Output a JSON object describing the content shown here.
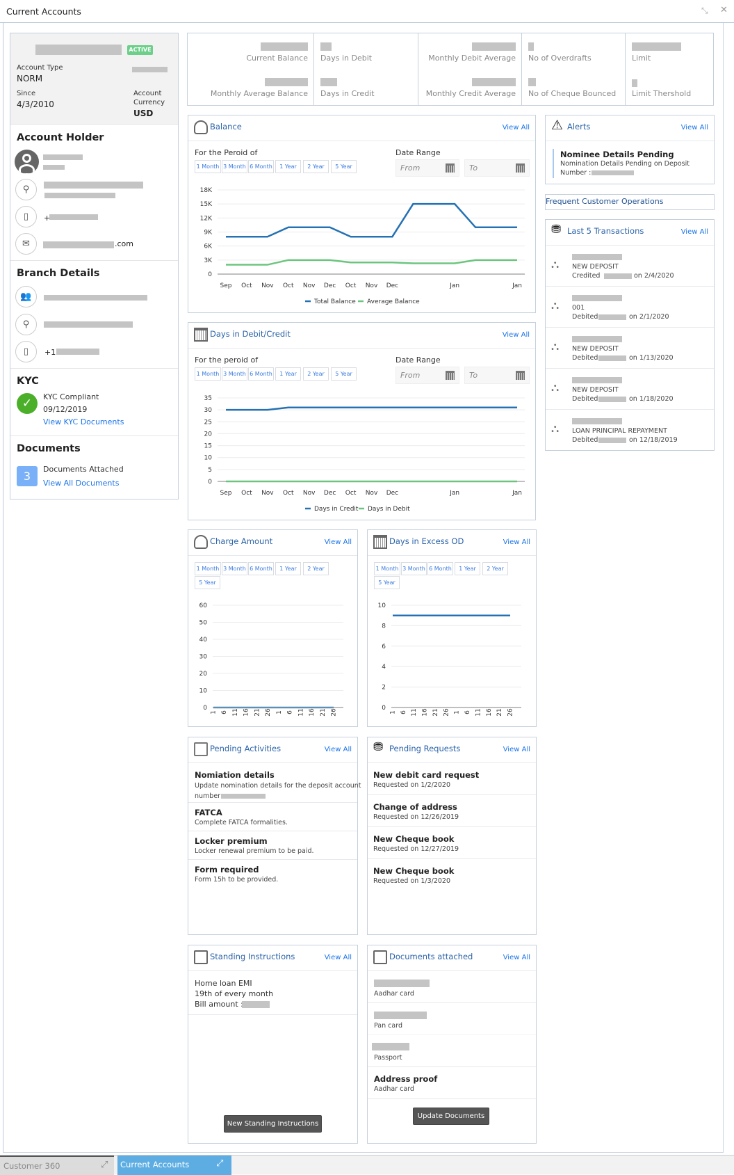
{
  "window": {
    "title": "Current Accounts",
    "minimize_icon": "collapse-icon",
    "close_icon": "close-icon"
  },
  "account": {
    "status": "ACTIVE",
    "account_type_label": "Account Type",
    "account_type": "NORM",
    "since_label": "Since",
    "since": "4/3/2010",
    "currency_label_1": "Account",
    "currency_label_2": "Currency",
    "currency": "USD"
  },
  "holder": {
    "heading": "Account Holder",
    "email_suffix": ".com",
    "phone_prefix": "+"
  },
  "branch": {
    "heading": "Branch Details",
    "phone_prefix": "+1"
  },
  "kyc": {
    "heading": "KYC",
    "status": "KYC Compliant",
    "date": "09/12/2019",
    "link": "View KYC Documents",
    "color": "#4caf2a"
  },
  "documents": {
    "heading": "Documents",
    "count": "3",
    "label": "Documents Attached",
    "link": "View All Documents"
  },
  "summary": {
    "current_balance": "Current Balance",
    "monthly_average_balance": "Monthly Average Balance",
    "days_in_debit": "Days in Debit",
    "days_in_credit": "Days in Credit",
    "monthly_debit_average": "Monthly Debit Average",
    "monthly_credit_average": "Monthly Credit Average",
    "no_of_overdrafts": "No of Overdrafts",
    "no_of_cheque_bounced": "No of Cheque Bounced",
    "limit": "Limit",
    "limit_threshold": "Limit Thershold"
  },
  "common": {
    "view_all": "View All",
    "periods": [
      "1 Month",
      "3 Month",
      "6 Month",
      "1 Year",
      "2 Year",
      "5 Year"
    ],
    "date_range": "Date Range",
    "from": "From",
    "to": "To"
  },
  "balance_card": {
    "title": "Balance",
    "period_label": "For the Peroid of"
  },
  "days_card": {
    "title": "Days in Debit/Credit",
    "period_label": "For the peroid of"
  },
  "charge_card": {
    "title": "Charge Amount"
  },
  "excess_card": {
    "title": "Days in Excess OD"
  },
  "alerts": {
    "title": "Alerts",
    "items": [
      {
        "title": "Nominee Details Pending",
        "text": "Nomination Details Pending on Deposit",
        "number_label": "Number :"
      }
    ]
  },
  "frequent": {
    "title": "Frequent Customer Operations"
  },
  "transactions": {
    "title": "Last 5 Transactions",
    "items": [
      {
        "desc": "NEW DEPOSIT",
        "type": "Credited",
        "date": "on 2/4/2020"
      },
      {
        "desc": "001",
        "type": "Debited",
        "date": "on 2/1/2020"
      },
      {
        "desc": "NEW DEPOSIT",
        "type": "Debited",
        "date": "on 1/13/2020"
      },
      {
        "desc": "NEW DEPOSIT",
        "type": "Debited",
        "date": "on 1/18/2020"
      },
      {
        "desc": "LOAN PRINCIPAL REPAYMENT",
        "type": "Debited",
        "date": "on 12/18/2019"
      }
    ]
  },
  "pending_activities": {
    "title": "Pending Activities",
    "items": [
      {
        "title": "Nomiation details",
        "text": "Update nomination details for the deposit account",
        "text2": "number"
      },
      {
        "title": "FATCA",
        "text": "Complete FATCA formalities."
      },
      {
        "title": "Locker premium",
        "text": "Locker renewal premium to be paid."
      },
      {
        "title": "Form required",
        "text": "Form 15h to be provided."
      }
    ]
  },
  "pending_requests": {
    "title": "Pending Requests",
    "items": [
      {
        "title": "New debit card request",
        "text": "Requested on 1/2/2020"
      },
      {
        "title": "Change of address",
        "text": "Requested on 12/26/2019"
      },
      {
        "title": "New Cheque book",
        "text": "Requested on 12/27/2019"
      },
      {
        "title": "New Cheque book",
        "text": "Requested on 1/3/2020"
      }
    ]
  },
  "standing": {
    "title": "Standing Instructions",
    "line1": "Home loan EMI",
    "line2": "19th of every month",
    "line3": "Bill amount :",
    "button": "New Standing Instructions"
  },
  "docs_attached": {
    "title": "Documents attached",
    "items": [
      {
        "text": "Aadhar card"
      },
      {
        "text": "Pan card"
      },
      {
        "text": "Passport"
      },
      {
        "title": "Address proof",
        "text": "Aadhar card"
      }
    ],
    "button": "Update Documents"
  },
  "taskbar": {
    "tabs": [
      {
        "label": "Customer 360",
        "active": false
      },
      {
        "label": "Current Accounts",
        "active": true
      }
    ],
    "active_color": "#5dade2"
  },
  "chart_data": [
    {
      "id": "balance",
      "type": "line",
      "categories": [
        "Sep",
        "Oct",
        "Nov",
        "Oct",
        "Nov",
        "Dec",
        "Oct",
        "Nov",
        "Dec",
        "",
        "",
        "Jan",
        "",
        "",
        "Jan"
      ],
      "ylim": [
        0,
        18000
      ],
      "yticks": [
        0,
        3000,
        6000,
        9000,
        12000,
        15000,
        18000
      ],
      "ytick_labels": [
        "0",
        "3K",
        "6K",
        "9K",
        "12K",
        "15K",
        "18K"
      ],
      "legend": "bottom",
      "grid": true,
      "series": [
        {
          "name": "Total Balance",
          "color": "#2471b3",
          "values": [
            8000,
            8000,
            8000,
            10000,
            10000,
            10000,
            8000,
            8000,
            8000,
            15000,
            15000,
            15000,
            10000,
            10000,
            10000
          ]
        },
        {
          "name": "Average Balance",
          "color": "#6cc57e",
          "values": [
            2000,
            2000,
            2000,
            3000,
            3000,
            3000,
            2500,
            2500,
            2500,
            2300,
            2300,
            2300,
            3000,
            3000,
            3000
          ]
        }
      ]
    },
    {
      "id": "days",
      "type": "line",
      "categories": [
        "Sep",
        "Oct",
        "Nov",
        "Oct",
        "Nov",
        "Dec",
        "Oct",
        "Nov",
        "Dec",
        "",
        "",
        "Jan",
        "",
        "",
        "Jan"
      ],
      "ylim": [
        0,
        35
      ],
      "yticks": [
        0,
        5,
        10,
        15,
        20,
        25,
        30,
        35
      ],
      "ytick_labels": [
        "0",
        "5",
        "10",
        "15",
        "20",
        "25",
        "30",
        "35"
      ],
      "legend": "bottom",
      "grid": true,
      "series": [
        {
          "name": "Days in Credit",
          "color": "#2471b3",
          "values": [
            30,
            30,
            30,
            31,
            31,
            31,
            31,
            31,
            31,
            31,
            31,
            31,
            31,
            31,
            31
          ]
        },
        {
          "name": "Days in Debit",
          "color": "#6cc57e",
          "values": [
            0,
            0,
            0,
            0,
            0,
            0,
            0,
            0,
            0,
            0,
            0,
            0,
            0,
            0,
            0
          ]
        }
      ]
    },
    {
      "id": "charge",
      "type": "line",
      "categories": [
        "1",
        "6",
        "11",
        "16",
        "21",
        "26",
        "1",
        "6",
        "11",
        "16",
        "21",
        "26"
      ],
      "ylim": [
        0,
        60
      ],
      "yticks": [
        0,
        10,
        20,
        30,
        40,
        50,
        60
      ],
      "ytick_labels": [
        "0",
        "10",
        "20",
        "30",
        "40",
        "50",
        "60"
      ],
      "grid": true,
      "series": [
        {
          "color": "#5b8fb5",
          "values": [
            0,
            0,
            0,
            0,
            0,
            0,
            0,
            0,
            0,
            0,
            0,
            0
          ]
        }
      ]
    },
    {
      "id": "excess",
      "type": "line",
      "categories": [
        "1",
        "6",
        "11",
        "16",
        "21",
        "26",
        "1",
        "6",
        "11",
        "16",
        "21",
        "26"
      ],
      "ylim": [
        0,
        10
      ],
      "yticks": [
        0,
        2,
        4,
        6,
        8,
        10
      ],
      "ytick_labels": [
        "0",
        "2",
        "4",
        "6",
        "8",
        "10"
      ],
      "grid": true,
      "series": [
        {
          "color": "#2471b3",
          "values": [
            9,
            9,
            9,
            9,
            9,
            9,
            9,
            9,
            9,
            9,
            9,
            9
          ]
        }
      ]
    }
  ]
}
